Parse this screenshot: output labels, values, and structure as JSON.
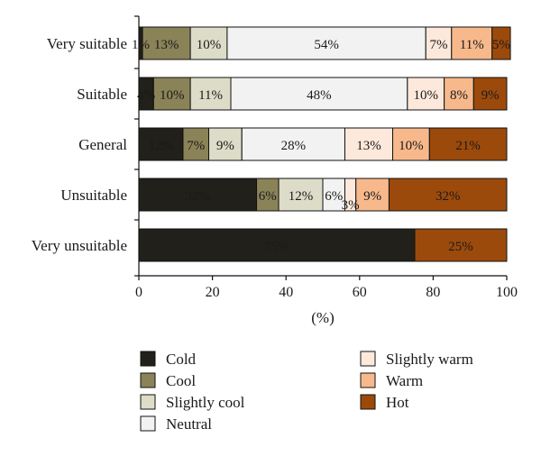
{
  "chart_data": {
    "type": "bar",
    "orientation": "horizontal",
    "stacked": true,
    "categories": [
      "Very suitable",
      "Suitable",
      "General",
      "Unsuitable",
      "Very unsuitable"
    ],
    "series": [
      {
        "name": "Cold",
        "color": "#22201a",
        "values": [
          1,
          4,
          12,
          32,
          75
        ],
        "labels": [
          "1%",
          "4%",
          "12%",
          "32%",
          "75%"
        ]
      },
      {
        "name": "Cool",
        "color": "#8b8358",
        "values": [
          13,
          10,
          7,
          6,
          0
        ],
        "labels": [
          "13%",
          "10%",
          "7%",
          "6%",
          ""
        ]
      },
      {
        "name": "Slightly cool",
        "color": "#dcdcc8",
        "values": [
          10,
          11,
          9,
          12,
          0
        ],
        "labels": [
          "10%",
          "11%",
          "9%",
          "12%",
          ""
        ]
      },
      {
        "name": "Neutral",
        "color": "#f2f2f2",
        "values": [
          54,
          48,
          28,
          6,
          0
        ],
        "labels": [
          "54%",
          "48%",
          "28%",
          "6%",
          ""
        ]
      },
      {
        "name": "Slightly warm",
        "color": "#fde9dc",
        "values": [
          7,
          10,
          13,
          3,
          0
        ],
        "labels": [
          "7%",
          "10%",
          "13%",
          "3%",
          ""
        ]
      },
      {
        "name": "Warm",
        "color": "#f7b98c",
        "values": [
          11,
          8,
          10,
          9,
          0
        ],
        "labels": [
          "11%",
          "8%",
          "10%",
          "9%",
          ""
        ]
      },
      {
        "name": "Hot",
        "color": "#9c4a0c",
        "values": [
          5,
          9,
          21,
          32,
          25
        ],
        "labels": [
          "5%",
          "9%",
          "21%",
          "32%",
          "25%"
        ]
      }
    ],
    "xlabel": "(%)",
    "xlim": [
      0,
      100
    ],
    "xticks": [
      "0",
      "20",
      "40",
      "60",
      "80",
      "100"
    ],
    "legend": "bottom",
    "legend_layout": "two-columns",
    "grid": false
  }
}
